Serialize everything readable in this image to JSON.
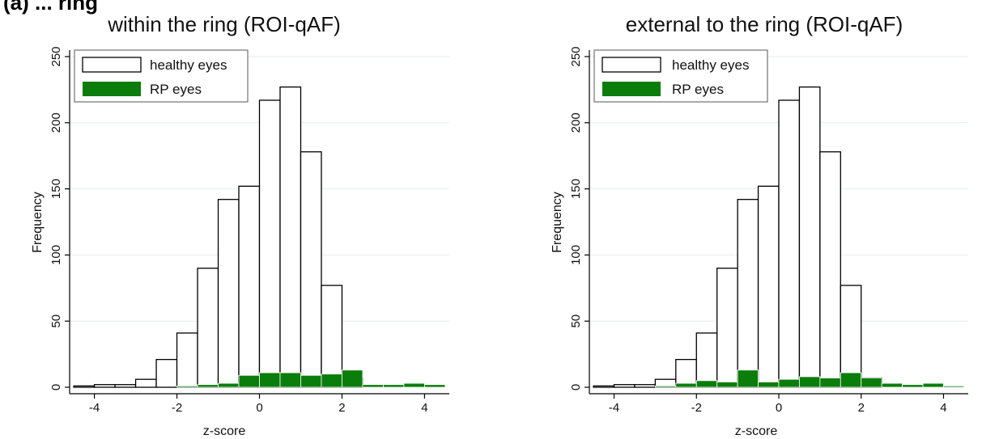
{
  "header_fragment": "(a) ... ring",
  "chart_data": [
    {
      "type": "bar",
      "title": "within the ring (ROI-qAF)",
      "xlabel": "z-score",
      "ylabel": "Frequency",
      "xlim": [
        -4.6,
        4.6
      ],
      "ylim": [
        0,
        250
      ],
      "xticks": [
        -4,
        -2,
        0,
        2,
        4
      ],
      "yticks": [
        0,
        50,
        100,
        150,
        200,
        250
      ],
      "grid": "horizontal",
      "legend": "top-left",
      "bin_width": 0.5,
      "series": [
        {
          "name": "healthy eyes",
          "color": "#ffffff",
          "stroke": "#000000",
          "bins": [
            {
              "x": -4.25,
              "y": 1
            },
            {
              "x": -3.75,
              "y": 2
            },
            {
              "x": -3.25,
              "y": 2
            },
            {
              "x": -2.75,
              "y": 6
            },
            {
              "x": -2.25,
              "y": 21
            },
            {
              "x": -1.75,
              "y": 41
            },
            {
              "x": -1.25,
              "y": 90
            },
            {
              "x": -0.75,
              "y": 142
            },
            {
              "x": -0.25,
              "y": 152
            },
            {
              "x": 0.25,
              "y": 217
            },
            {
              "x": 0.75,
              "y": 227
            },
            {
              "x": 1.25,
              "y": 178
            },
            {
              "x": 1.75,
              "y": 77
            },
            {
              "x": 2.25,
              "y": 7
            }
          ]
        },
        {
          "name": "RP eyes",
          "color": "#0b7d0b",
          "stroke": "#ffffff",
          "bins": [
            {
              "x": -1.75,
              "y": 1
            },
            {
              "x": -1.25,
              "y": 2
            },
            {
              "x": -0.75,
              "y": 3
            },
            {
              "x": -0.25,
              "y": 9
            },
            {
              "x": 0.25,
              "y": 11
            },
            {
              "x": 0.75,
              "y": 11
            },
            {
              "x": 1.25,
              "y": 9
            },
            {
              "x": 1.75,
              "y": 10
            },
            {
              "x": 2.25,
              "y": 13
            },
            {
              "x": 2.75,
              "y": 2
            },
            {
              "x": 3.25,
              "y": 2
            },
            {
              "x": 3.75,
              "y": 3
            },
            {
              "x": 4.25,
              "y": 2
            }
          ]
        }
      ]
    },
    {
      "type": "bar",
      "title": "external to the ring (ROI-qAF)",
      "xlabel": "z-score",
      "ylabel": "Frequency",
      "xlim": [
        -4.6,
        4.6
      ],
      "ylim": [
        0,
        250
      ],
      "xticks": [
        -4,
        -2,
        0,
        2,
        4
      ],
      "yticks": [
        0,
        50,
        100,
        150,
        200,
        250
      ],
      "grid": "horizontal",
      "legend": "top-left",
      "bin_width": 0.5,
      "series": [
        {
          "name": "healthy eyes",
          "color": "#ffffff",
          "stroke": "#000000",
          "bins": [
            {
              "x": -4.25,
              "y": 1
            },
            {
              "x": -3.75,
              "y": 2
            },
            {
              "x": -3.25,
              "y": 2
            },
            {
              "x": -2.75,
              "y": 6
            },
            {
              "x": -2.25,
              "y": 21
            },
            {
              "x": -1.75,
              "y": 41
            },
            {
              "x": -1.25,
              "y": 90
            },
            {
              "x": -0.75,
              "y": 142
            },
            {
              "x": -0.25,
              "y": 152
            },
            {
              "x": 0.25,
              "y": 217
            },
            {
              "x": 0.75,
              "y": 227
            },
            {
              "x": 1.25,
              "y": 178
            },
            {
              "x": 1.75,
              "y": 77
            },
            {
              "x": 2.25,
              "y": 7
            }
          ]
        },
        {
          "name": "RP eyes",
          "color": "#0b7d0b",
          "stroke": "#ffffff",
          "bins": [
            {
              "x": -2.75,
              "y": 1
            },
            {
              "x": -2.25,
              "y": 3
            },
            {
              "x": -1.75,
              "y": 5
            },
            {
              "x": -1.25,
              "y": 4
            },
            {
              "x": -0.75,
              "y": 13
            },
            {
              "x": -0.25,
              "y": 4
            },
            {
              "x": 0.25,
              "y": 6
            },
            {
              "x": 0.75,
              "y": 8
            },
            {
              "x": 1.25,
              "y": 7
            },
            {
              "x": 1.75,
              "y": 11
            },
            {
              "x": 2.25,
              "y": 7
            },
            {
              "x": 2.75,
              "y": 3
            },
            {
              "x": 3.25,
              "y": 2
            },
            {
              "x": 3.75,
              "y": 3
            },
            {
              "x": 4.25,
              "y": 1
            }
          ]
        }
      ]
    }
  ]
}
